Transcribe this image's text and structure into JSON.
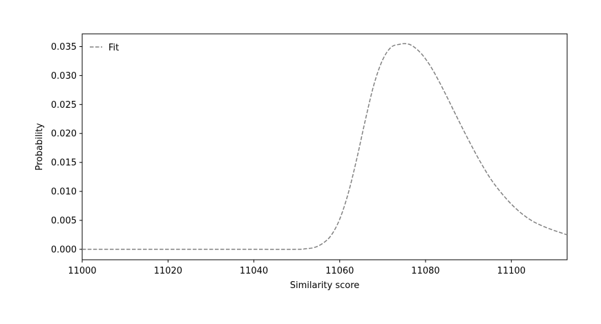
{
  "chart_data": {
    "type": "line",
    "title": "",
    "xlabel": "Similarity score",
    "ylabel": "Probability",
    "xlim": [
      11000,
      11113
    ],
    "ylim": [
      -0.0018,
      0.0372
    ],
    "xticks": [
      11000,
      11020,
      11040,
      11060,
      11080,
      11100
    ],
    "yticks": [
      0.0,
      0.005,
      0.01,
      0.015,
      0.02,
      0.025,
      0.03,
      0.035
    ],
    "ytick_labels": [
      "0.000",
      "0.005",
      "0.010",
      "0.015",
      "0.020",
      "0.025",
      "0.030",
      "0.035"
    ],
    "grid": false,
    "legend": {
      "position": "top-left",
      "entries": [
        "Fit"
      ]
    },
    "series": [
      {
        "name": "Fit",
        "color": "#808080",
        "style": "dashed",
        "x": [
          11000,
          11010,
          11020,
          11030,
          11040,
          11050,
          11052,
          11054,
          11056,
          11058,
          11060,
          11062,
          11064,
          11066,
          11068,
          11070,
          11072,
          11074,
          11075.5,
          11077,
          11079,
          11081,
          11083,
          11085,
          11087,
          11090,
          11093,
          11096,
          11100,
          11104,
          11108,
          11113
        ],
        "y": [
          0.0,
          0.0,
          0.0,
          0.0,
          0.0,
          0.0,
          0.0001,
          0.0003,
          0.001,
          0.0024,
          0.0052,
          0.0097,
          0.0157,
          0.0224,
          0.0285,
          0.0327,
          0.0349,
          0.0354,
          0.0355,
          0.0351,
          0.0338,
          0.0318,
          0.0292,
          0.0263,
          0.0233,
          0.0189,
          0.0148,
          0.0113,
          0.0078,
          0.0053,
          0.0038,
          0.0025
        ]
      }
    ]
  }
}
